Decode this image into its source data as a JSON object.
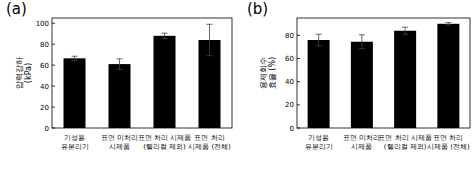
{
  "chart_data": [
    {
      "type": "bar",
      "annotation": "(a)",
      "y_label": "압력강하\n(kPa)",
      "categories": [
        "기성용\n유분리기",
        "표면 미처리\n시제품",
        "표면 처리 시제품\n(헬리컬 제외)",
        "표면 처리\n시제품 (전체)"
      ],
      "values": [
        66.5,
        61,
        88,
        84
      ],
      "errors": [
        2,
        5,
        2.5,
        15
      ],
      "color": "#000000",
      "ylim": [
        0,
        105
      ],
      "yticks": [
        0,
        20,
        40,
        60,
        80,
        100
      ]
    },
    {
      "type": "bar",
      "annotation": "(b)",
      "y_label": "용제회수\n효율 (%)",
      "categories": [
        "기성용\n유분리기",
        "표면 미처리\n시제품",
        "표면 처리 시제품\n(헬리컬 제외)",
        "표면 처리\n시제품 (전체)"
      ],
      "values": [
        76,
        74.5,
        84,
        90
      ],
      "errors": [
        5,
        6,
        3,
        1
      ],
      "color": "#000000",
      "ylim": [
        0,
        95
      ],
      "yticks": [
        0,
        20,
        40,
        60,
        80
      ]
    }
  ]
}
